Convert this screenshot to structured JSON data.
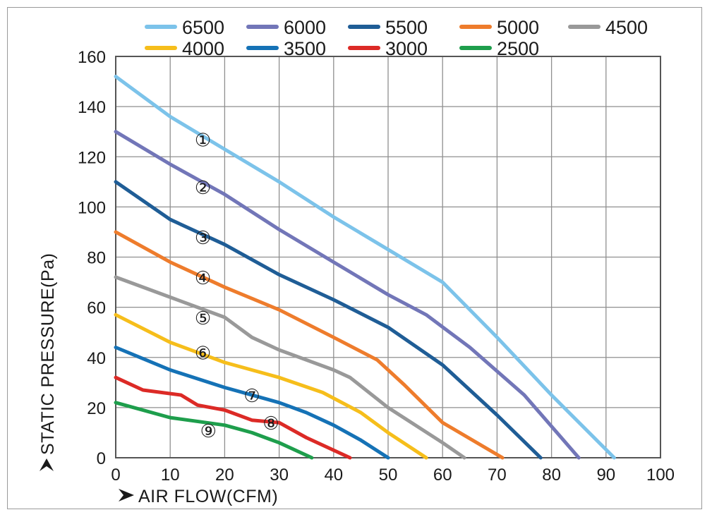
{
  "chart_data": {
    "type": "line",
    "xlabel": "AIR FLOW(CFM)",
    "ylabel": "STATIC PRESSURE(Pa)",
    "xlim": [
      0,
      100
    ],
    "ylim": [
      0,
      160
    ],
    "x_ticks": [
      "0",
      "10",
      "20",
      "30",
      "40",
      "50",
      "60",
      "70",
      "80",
      "90",
      "100"
    ],
    "y_ticks": [
      "0",
      "20",
      "40",
      "60",
      "80",
      "100",
      "120",
      "140",
      "160"
    ],
    "grid": true,
    "legend_position": "top",
    "series": [
      {
        "name": "6500",
        "color": "#7cc3ea",
        "x": [
          0,
          10,
          20,
          30,
          40,
          50,
          60,
          70,
          80,
          91.5
        ],
        "y": [
          152,
          136,
          123,
          110,
          96,
          83,
          70,
          48,
          25,
          0
        ]
      },
      {
        "name": "6000",
        "color": "#7276b8",
        "x": [
          0,
          10,
          20,
          30,
          40,
          50,
          57,
          65,
          75,
          85
        ],
        "y": [
          130,
          117,
          105,
          91,
          78,
          65,
          57,
          44,
          25,
          0
        ]
      },
      {
        "name": "5500",
        "color": "#1f5d96",
        "x": [
          0,
          10,
          20,
          30,
          40,
          50,
          60,
          70,
          78
        ],
        "y": [
          110,
          95,
          85,
          73,
          63,
          52,
          37,
          17,
          0
        ]
      },
      {
        "name": "5000",
        "color": "#ee7c2c",
        "x": [
          0,
          10,
          20,
          30,
          40,
          48,
          53,
          60,
          71
        ],
        "y": [
          90,
          78,
          68,
          59,
          48,
          39,
          29,
          14,
          0
        ]
      },
      {
        "name": "4500",
        "color": "#999999",
        "x": [
          0,
          10,
          20,
          25,
          30,
          40,
          43,
          50,
          60,
          64
        ],
        "y": [
          72,
          64,
          56,
          48,
          43,
          35,
          32,
          20,
          6,
          0
        ]
      },
      {
        "name": "4000",
        "color": "#f6be1b",
        "x": [
          0,
          10,
          20,
          30,
          38,
          45,
          50,
          57
        ],
        "y": [
          57,
          46,
          38,
          32,
          26,
          18,
          10,
          0
        ]
      },
      {
        "name": "3500",
        "color": "#1572b6",
        "x": [
          0,
          10,
          20,
          30,
          35,
          40,
          45,
          50
        ],
        "y": [
          44,
          35,
          28,
          22,
          18,
          13,
          7,
          0
        ]
      },
      {
        "name": "3000",
        "color": "#dc2a26",
        "x": [
          0,
          5,
          12,
          15,
          20,
          25,
          30,
          35,
          43
        ],
        "y": [
          32,
          27,
          25,
          21,
          19,
          15,
          14,
          8,
          0
        ]
      },
      {
        "name": "2500",
        "color": "#1e9e4c",
        "x": [
          0,
          10,
          20,
          25,
          30,
          36
        ],
        "y": [
          22,
          16,
          13,
          10,
          6,
          0
        ]
      }
    ],
    "curve_labels": [
      {
        "text": "①",
        "x": 16,
        "y": 127
      },
      {
        "text": "②",
        "x": 16,
        "y": 108
      },
      {
        "text": "③",
        "x": 16,
        "y": 88
      },
      {
        "text": "④",
        "x": 16,
        "y": 72
      },
      {
        "text": "⑤",
        "x": 16,
        "y": 56
      },
      {
        "text": "⑥",
        "x": 16,
        "y": 42
      },
      {
        "text": "⑦",
        "x": 25,
        "y": 25
      },
      {
        "text": "⑧",
        "x": 28.5,
        "y": 14
      },
      {
        "text": "⑨",
        "x": 17,
        "y": 11
      }
    ]
  }
}
